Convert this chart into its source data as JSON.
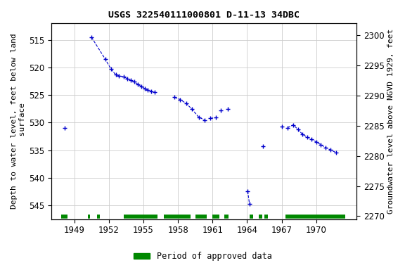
{
  "title": "USGS 322540111000801 D-11-13 34DBC",
  "ylabel_left": "Depth to water level, feet below land\n surface",
  "ylabel_right": "Groundwater level above NGVD 1929, feet",
  "background_color": "#ffffff",
  "plot_bg_color": "#ffffff",
  "grid_color": "#cccccc",
  "data_color": "#0000cc",
  "marker": "+",
  "linestyle": "--",
  "linewidth": 0.8,
  "markersize": 5,
  "markeredgewidth": 1.0,
  "ylim_left": [
    547.5,
    512.0
  ],
  "ylim_right": [
    2269.5,
    2302.0
  ],
  "xlim": [
    1947.0,
    1973.5
  ],
  "yticks_left": [
    515,
    520,
    525,
    530,
    535,
    540,
    545
  ],
  "yticks_right": [
    2270,
    2275,
    2280,
    2285,
    2290,
    2295,
    2300
  ],
  "xticks": [
    1949,
    1952,
    1955,
    1958,
    1961,
    1964,
    1967,
    1970
  ],
  "segments": [
    {
      "x": [
        1948.2
      ],
      "y": [
        531.0
      ]
    },
    {
      "x": [
        1950.5,
        1951.7,
        1952.2,
        1952.6,
        1952.9,
        1953.3,
        1953.6,
        1953.9,
        1954.2,
        1954.5,
        1954.8,
        1955.1,
        1955.4,
        1955.7,
        1956.0
      ],
      "y": [
        514.5,
        518.5,
        520.3,
        521.3,
        521.5,
        521.7,
        522.0,
        522.3,
        522.6,
        523.0,
        523.4,
        523.8,
        524.1,
        524.3,
        524.5
      ]
    },
    {
      "x": [
        1957.7,
        1958.2,
        1958.7,
        1959.2,
        1959.8,
        1960.3
      ],
      "y": [
        525.4,
        525.8,
        526.5,
        527.5,
        529.0,
        529.5
      ]
    },
    {
      "x": [
        1960.8,
        1961.3
      ],
      "y": [
        529.2,
        529.1
      ]
    },
    {
      "x": [
        1961.7
      ],
      "y": [
        527.8
      ]
    },
    {
      "x": [
        1962.3
      ],
      "y": [
        527.5
      ]
    },
    {
      "x": [
        1964.05,
        1964.2
      ],
      "y": [
        542.4,
        544.7
      ]
    },
    {
      "x": [
        1965.4
      ],
      "y": [
        534.3
      ]
    },
    {
      "x": [
        1967.5,
        1968.0,
        1968.4,
        1968.8,
        1969.2,
        1969.6,
        1970.0,
        1970.4,
        1970.8,
        1971.2,
        1971.7
      ],
      "y": [
        530.9,
        530.4,
        531.2,
        532.1,
        532.6,
        533.0,
        533.5,
        534.0,
        534.5,
        534.9,
        535.4
      ]
    },
    {
      "x": [
        1967.0
      ],
      "y": [
        530.7
      ]
    }
  ],
  "approved_periods": [
    [
      1947.9,
      1948.4
    ],
    [
      1950.2,
      1950.4
    ],
    [
      1951.0,
      1951.2
    ],
    [
      1953.3,
      1956.2
    ],
    [
      1956.8,
      1959.1
    ],
    [
      1959.5,
      1960.5
    ],
    [
      1961.0,
      1961.6
    ],
    [
      1962.0,
      1962.4
    ],
    [
      1964.2,
      1964.5
    ],
    [
      1965.0,
      1965.3
    ],
    [
      1965.5,
      1965.8
    ],
    [
      1967.3,
      1972.5
    ]
  ],
  "approved_bar_y": 547.0,
  "approved_bar_linewidth": 4,
  "legend_label": "Period of approved data",
  "legend_color": "#008800",
  "title_fontsize": 9.5,
  "axis_fontsize": 8,
  "tick_fontsize": 8.5
}
